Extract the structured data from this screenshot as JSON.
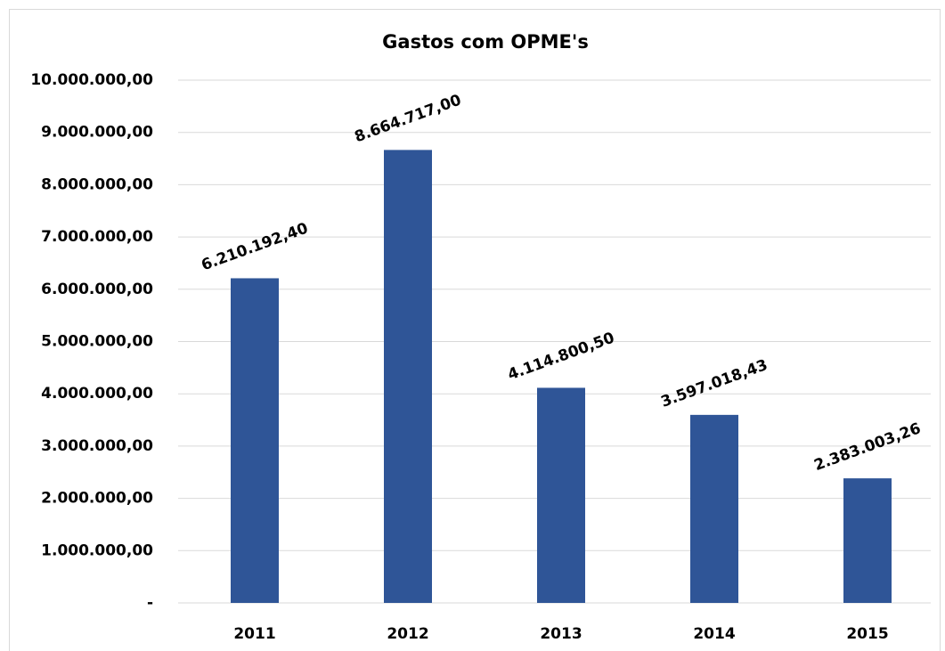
{
  "chart_data": {
    "type": "bar",
    "title": "Gastos com OPME's",
    "categories": [
      "2011",
      "2012",
      "2013",
      "2014",
      "2015"
    ],
    "values": [
      6210192.4,
      8664717.0,
      4114800.5,
      3597018.43,
      2383003.26
    ],
    "value_labels": [
      "6.210.192,40",
      "8.664.717,00",
      "4.114.800,50",
      "3.597.018,43",
      "2.383.003,26"
    ],
    "color": "#2f5597",
    "ylim": [
      0,
      10000000
    ],
    "yticks": [
      {
        "value": 0,
        "label": "-"
      },
      {
        "value": 1000000,
        "label": "1.000.000,00"
      },
      {
        "value": 2000000,
        "label": "2.000.000,00"
      },
      {
        "value": 3000000,
        "label": "3.000.000,00"
      },
      {
        "value": 4000000,
        "label": "4.000.000,00"
      },
      {
        "value": 5000000,
        "label": "5.000.000,00"
      },
      {
        "value": 6000000,
        "label": "6.000.000,00"
      },
      {
        "value": 7000000,
        "label": "7.000.000,00"
      },
      {
        "value": 8000000,
        "label": "8.000.000,00"
      },
      {
        "value": 9000000,
        "label": "9.000.000,00"
      },
      {
        "value": 10000000,
        "label": "10.000.000,00"
      }
    ],
    "grid": true
  }
}
